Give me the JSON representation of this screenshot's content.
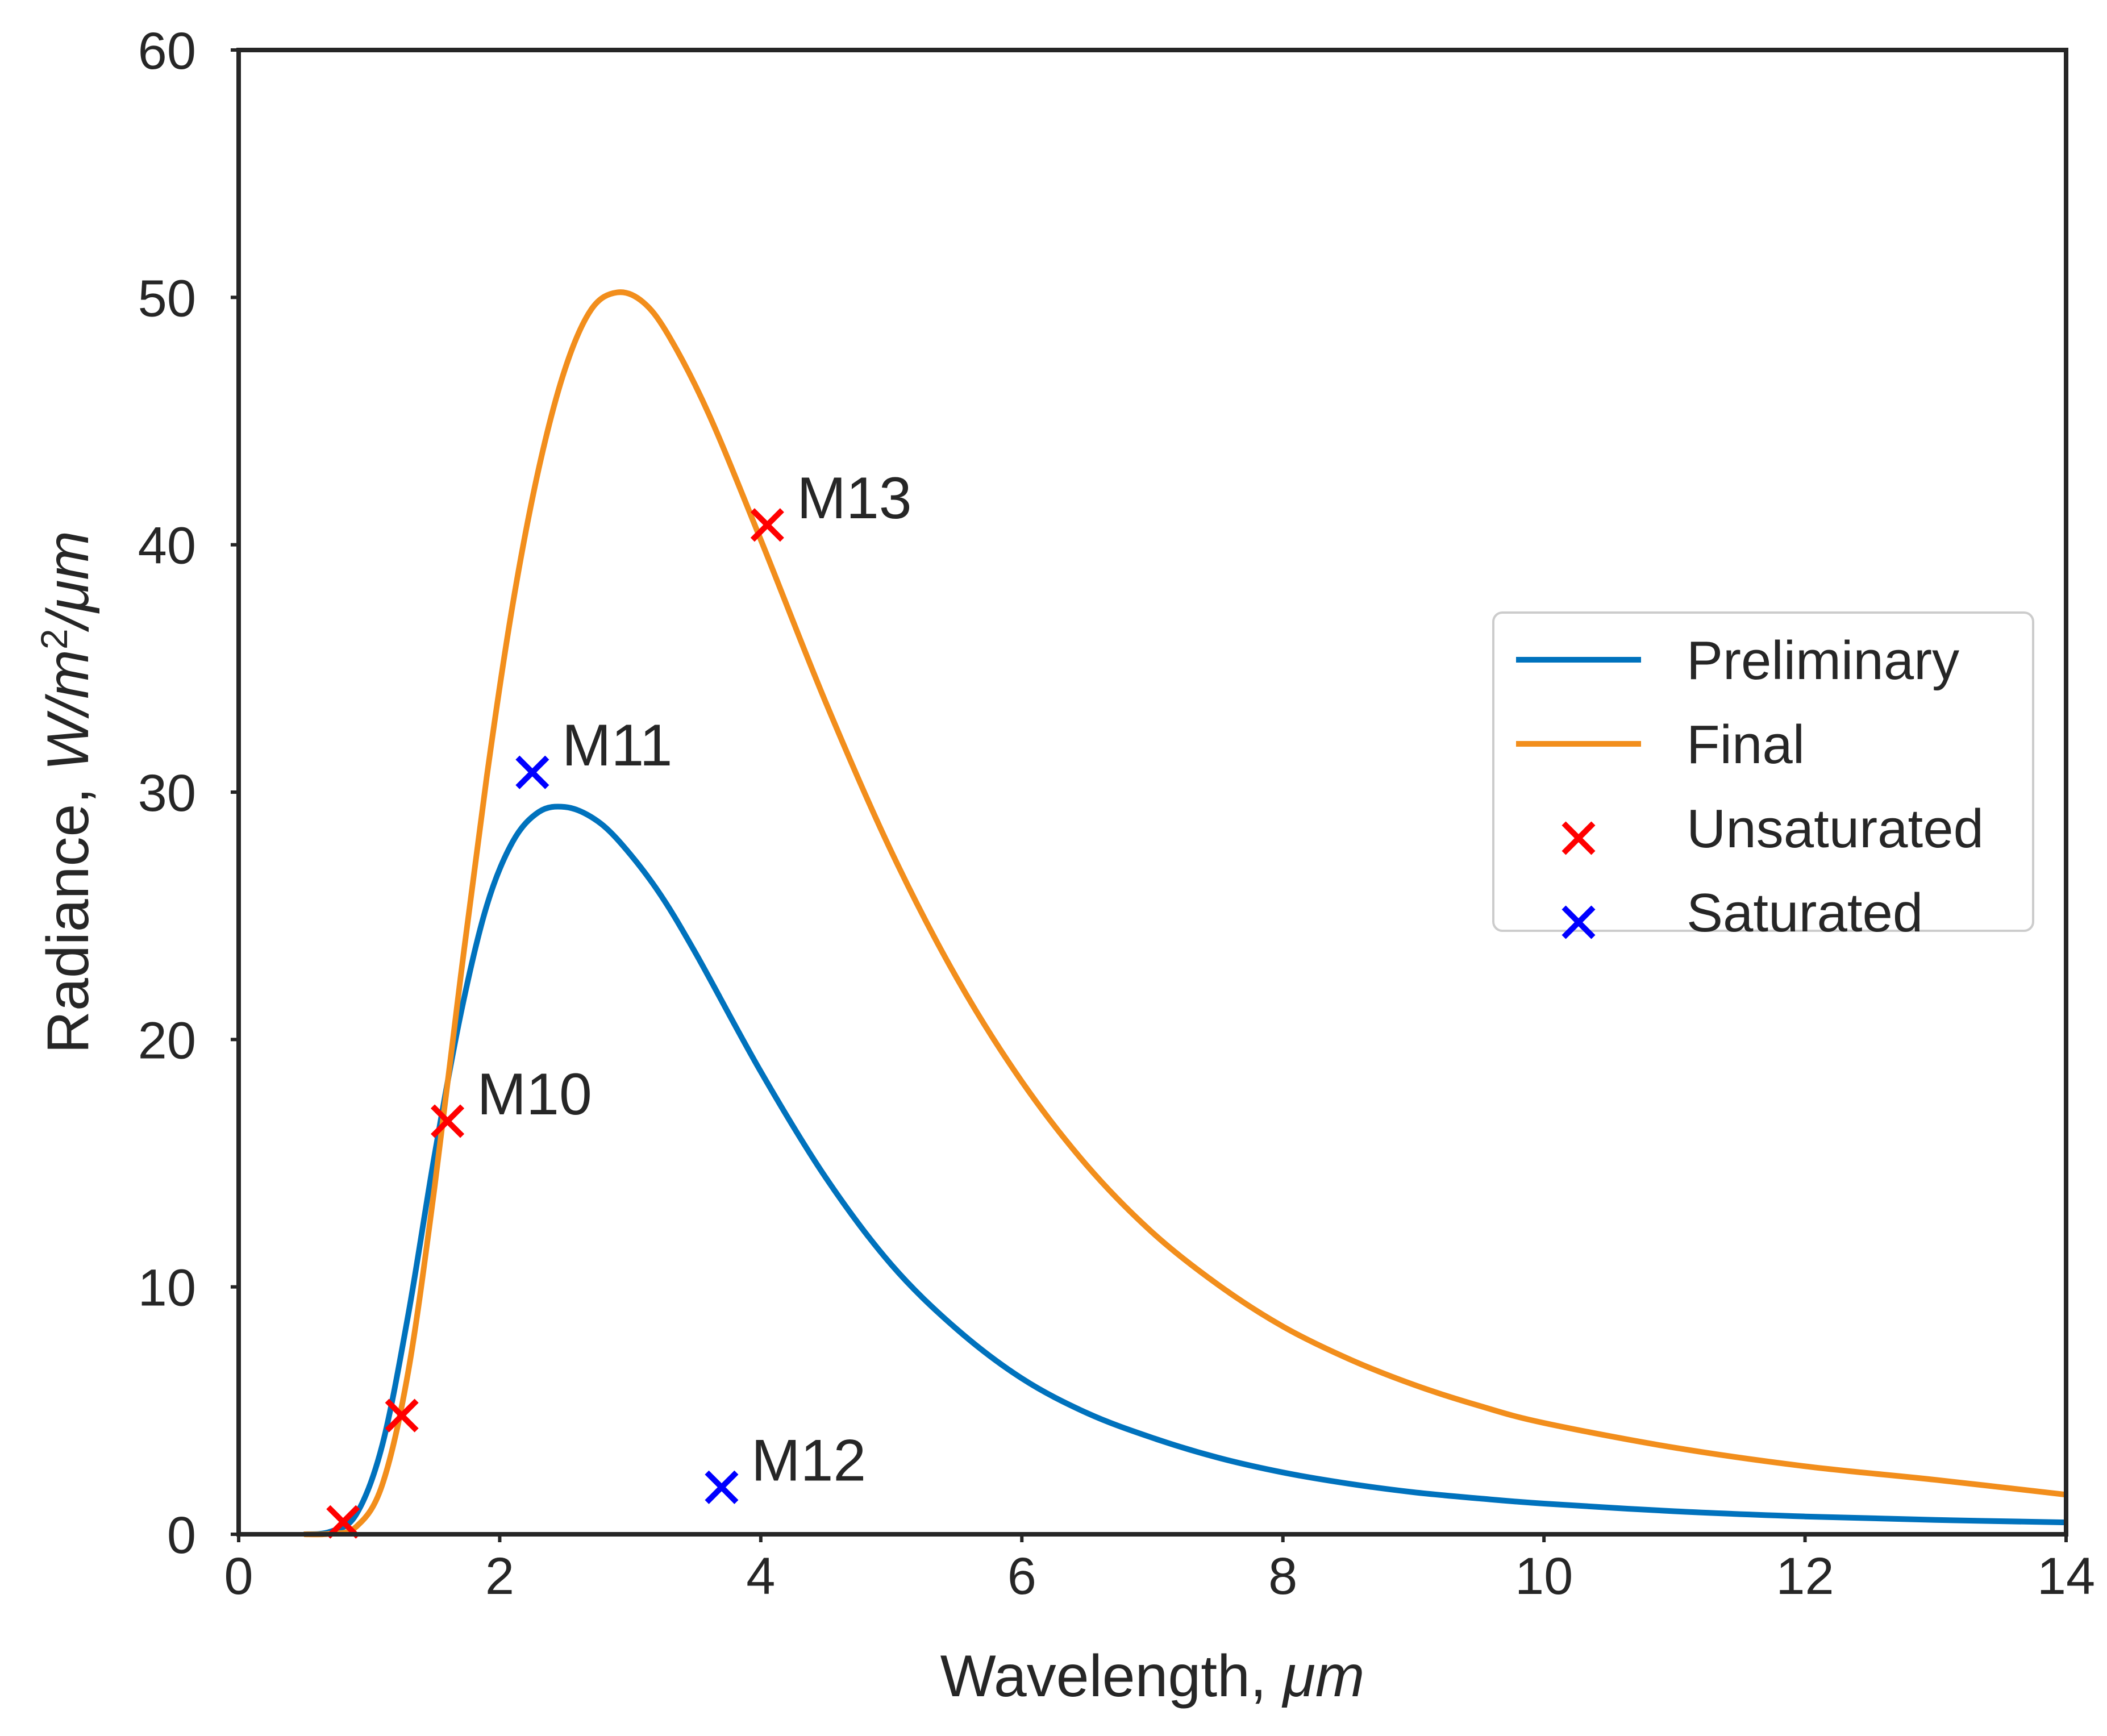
{
  "chart_data": {
    "type": "line",
    "title": "",
    "xlabel": "Wavelength, μm",
    "ylabel": "Radiance, W/m²/μm",
    "xlabel_parts": {
      "text": "Wavelength, ",
      "unit": "μm"
    },
    "ylabel_parts": {
      "text": "Radiance, ",
      "unit_w": "W/m",
      "unit_exp": "2",
      "unit_tail": "/μm"
    },
    "xlim": [
      0,
      14
    ],
    "ylim": [
      0,
      60
    ],
    "xticks": [
      0,
      2,
      4,
      6,
      8,
      10,
      12,
      14
    ],
    "yticks": [
      0,
      10,
      20,
      30,
      40,
      50,
      60
    ],
    "grid": false,
    "legend_position": "center-right",
    "series": [
      {
        "name": "Preliminary",
        "kind": "line",
        "color": "#0072BD",
        "x": [
          0.5,
          0.7,
          0.9,
          1.1,
          1.3,
          1.5,
          1.7,
          1.9,
          2.1,
          2.3,
          2.5,
          2.7,
          2.9,
          3.2,
          3.5,
          4.0,
          4.5,
          5.0,
          5.5,
          6.0,
          6.5,
          7.0,
          7.5,
          8.0,
          8.5,
          9.0,
          9.5,
          10.0,
          11.0,
          12.0,
          13.0,
          14.0
        ],
        "y": [
          0.0,
          0.1,
          0.8,
          3.6,
          8.9,
          15.3,
          21.0,
          25.4,
          28.0,
          29.2,
          29.4,
          29.0,
          28.1,
          26.1,
          23.5,
          18.7,
          14.4,
          10.9,
          8.3,
          6.3,
          4.9,
          3.9,
          3.1,
          2.5,
          2.05,
          1.7,
          1.45,
          1.24,
          0.93,
          0.72,
          0.58,
          0.48
        ]
      },
      {
        "name": "Final",
        "kind": "line",
        "color": "#F28E1C",
        "x": [
          0.5,
          0.7,
          0.9,
          1.1,
          1.3,
          1.5,
          1.7,
          1.9,
          2.1,
          2.3,
          2.5,
          2.7,
          2.9,
          3.1,
          3.3,
          3.6,
          4.0,
          4.5,
          5.0,
          5.5,
          6.0,
          6.5,
          7.0,
          7.5,
          8.0,
          8.5,
          9.0,
          9.5,
          10.0,
          11.0,
          12.0,
          13.0,
          14.0
        ],
        "y": [
          0.0,
          0.02,
          0.3,
          2.0,
          6.6,
          14.0,
          22.5,
          30.6,
          37.6,
          43.1,
          47.1,
          49.5,
          50.2,
          49.8,
          48.4,
          45.3,
          40.2,
          33.6,
          27.6,
          22.5,
          18.3,
          14.9,
          12.2,
          10.1,
          8.4,
          7.1,
          6.05,
          5.2,
          4.5,
          3.5,
          2.75,
          2.2,
          1.6
        ]
      },
      {
        "name": "Unsaturated",
        "kind": "scatter",
        "marker": "x",
        "color": "#FF0000",
        "points": [
          {
            "x": 0.8,
            "y": 0.5,
            "label": ""
          },
          {
            "x": 1.25,
            "y": 4.8,
            "label": ""
          },
          {
            "x": 1.6,
            "y": 16.7,
            "label": "M10"
          },
          {
            "x": 4.05,
            "y": 40.8,
            "label": "M13"
          }
        ]
      },
      {
        "name": "Saturated",
        "kind": "scatter",
        "marker": "x",
        "color": "#0000FF",
        "points": [
          {
            "x": 2.25,
            "y": 30.8,
            "label": "M11"
          },
          {
            "x": 3.7,
            "y": 1.9,
            "label": "M12"
          }
        ]
      }
    ]
  }
}
